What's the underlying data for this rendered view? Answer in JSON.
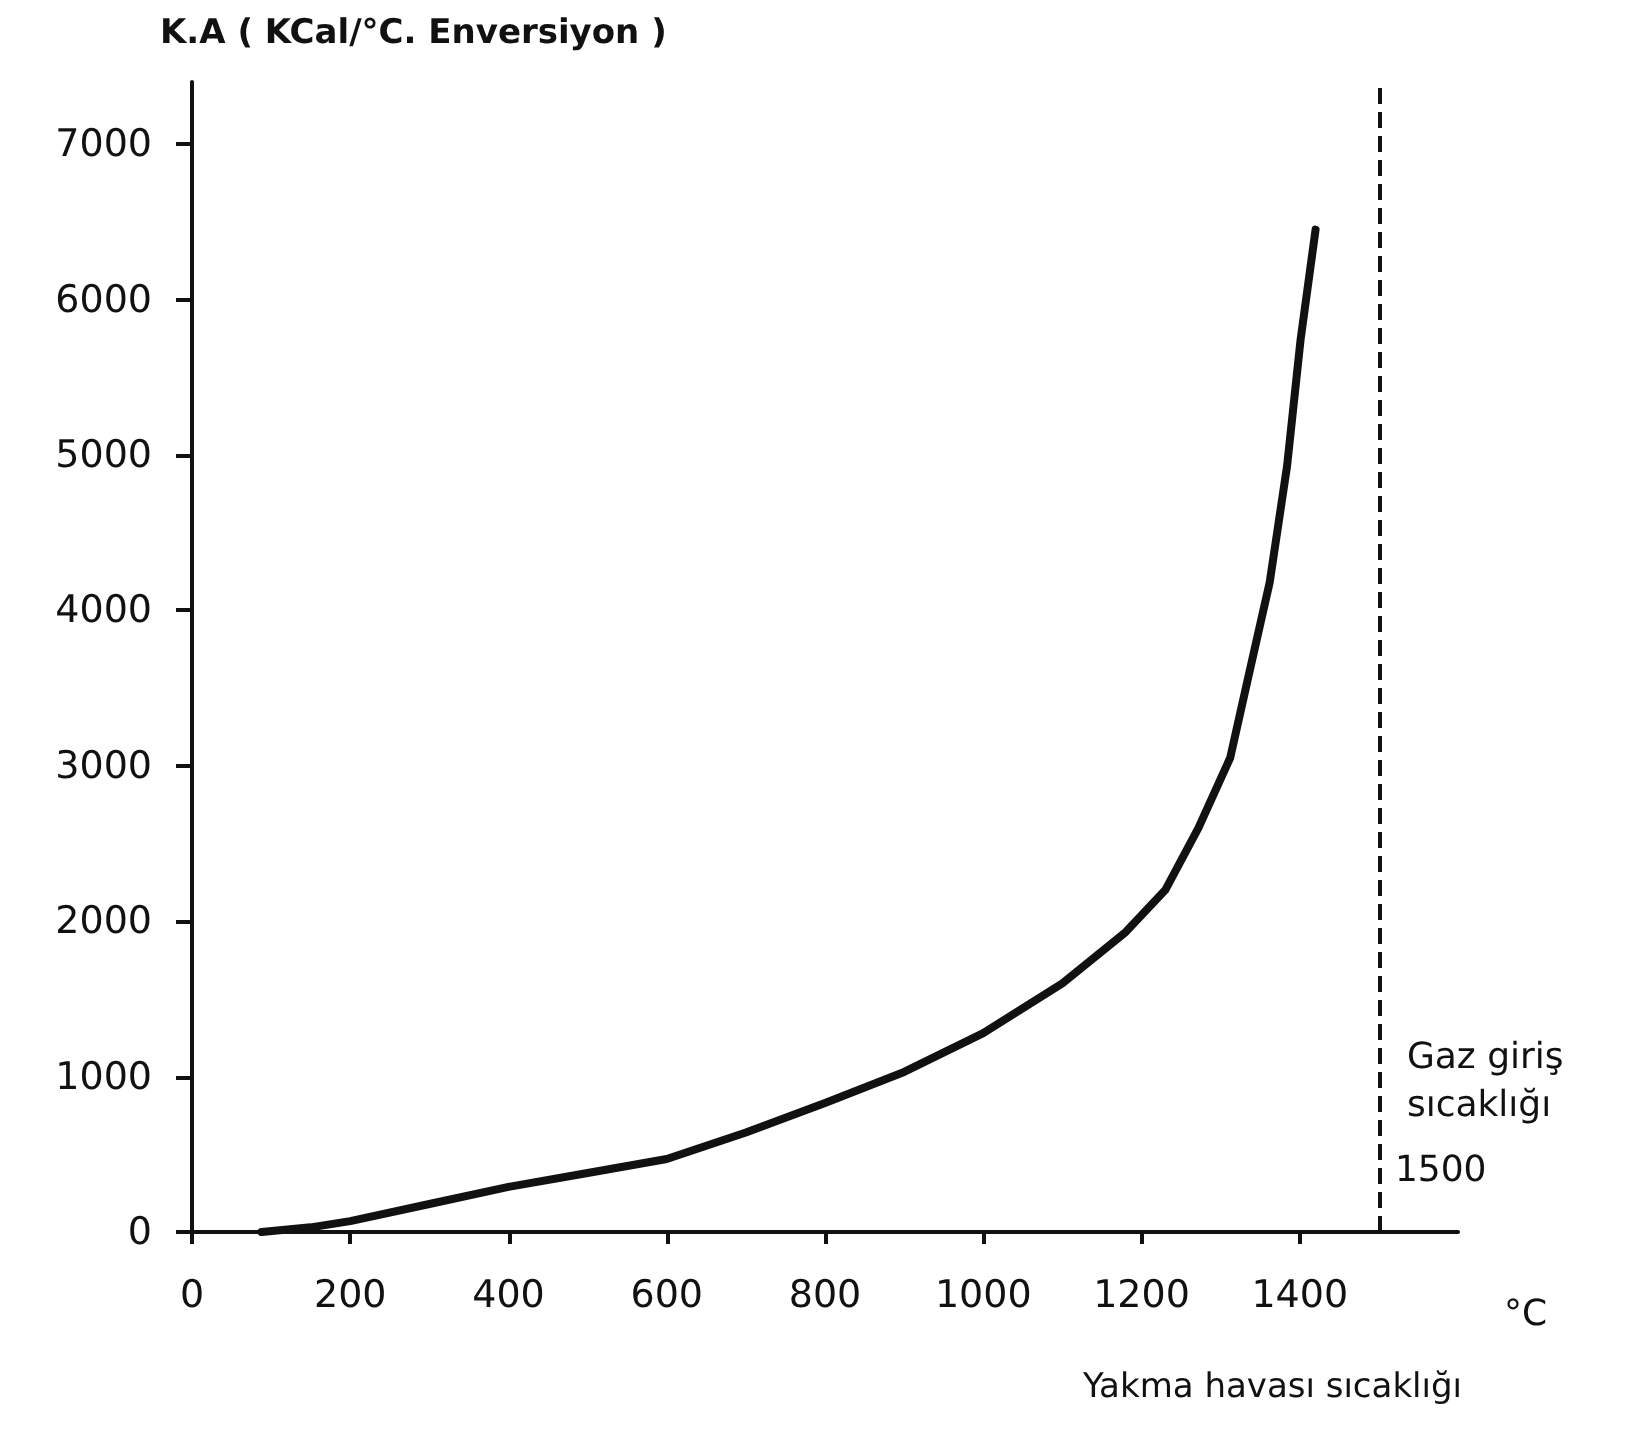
{
  "chart_data": {
    "type": "line",
    "ylabel": "K.A ( KCal/°C. Enversiyon )",
    "xlabel": "Yakma havası sıcaklığı",
    "x": [
      88,
      150,
      200,
      300,
      400,
      500,
      600,
      700,
      800,
      900,
      1000,
      1100,
      1180,
      1230,
      1272,
      1312,
      1338,
      1362,
      1384,
      1401,
      1420
    ],
    "series": [
      {
        "color": "#111111",
        "values": [
          0,
          30,
          70,
          180,
          290,
          380,
          470,
          640,
          830,
          1030,
          1280,
          1600,
          1930,
          2200,
          2600,
          3050,
          3640,
          4180,
          4930,
          5740,
          6450
        ]
      }
    ],
    "xlim": [
      0,
      1600
    ],
    "xticks": [
      0,
      200,
      400,
      600,
      800,
      1000,
      1200,
      1400
    ],
    "ylim": [
      0,
      7400
    ],
    "yticks": [
      0,
      1000,
      2000,
      3000,
      4000,
      5000,
      6000,
      7000
    ],
    "ref_lines": [
      {
        "axis": "x",
        "value": 1500,
        "label": "1500",
        "color": "#111111",
        "line_style": "dashed"
      }
    ],
    "annotations": [
      {
        "text": "Gaz giriş\nsıcaklığı",
        "x": 1500,
        "y": 1000
      },
      "°C"
    ],
    "grid": false,
    "marker": "none",
    "line_style": "solid"
  }
}
